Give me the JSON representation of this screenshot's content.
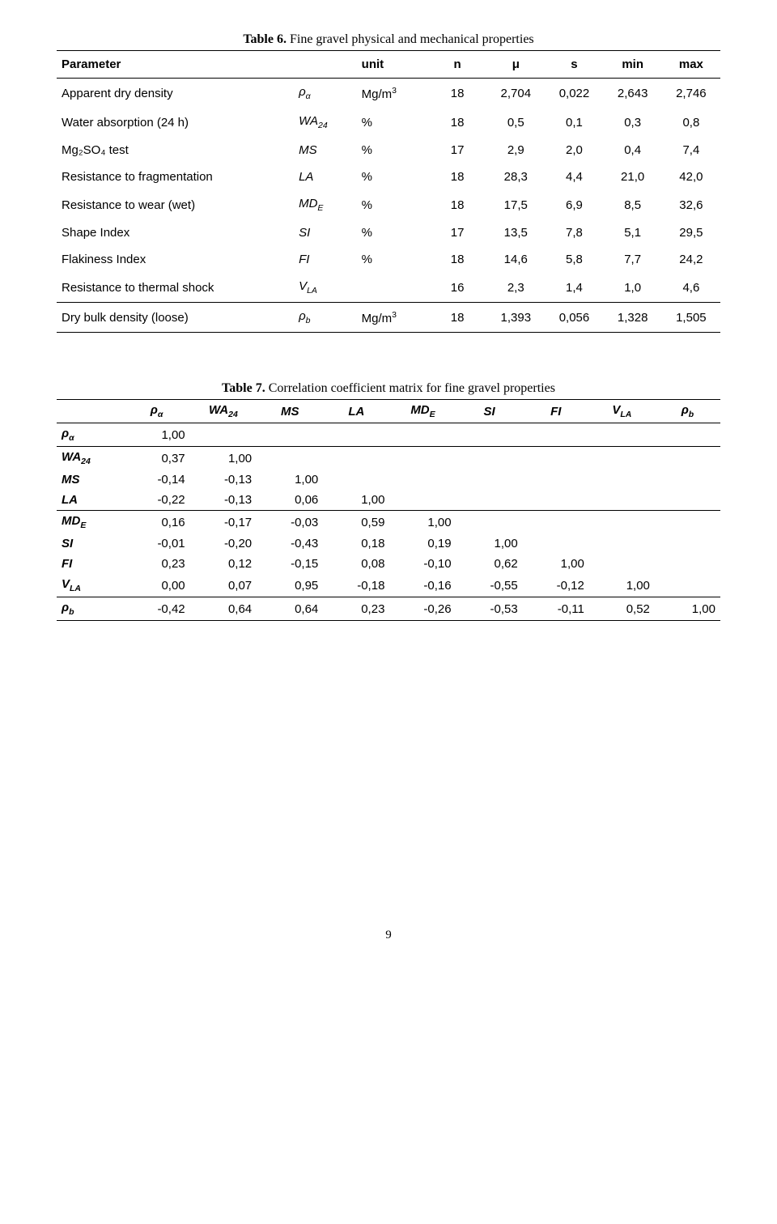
{
  "table6": {
    "title_bold": "Table 6.",
    "title_rest": " Fine gravel physical and mechanical properties",
    "headers": [
      "Parameter",
      "",
      "unit",
      "n",
      "μ",
      "s",
      "min",
      "max"
    ],
    "rows": [
      {
        "param": "Apparent dry density",
        "sym": "ρ",
        "sub": "α",
        "unit": "Mg/m",
        "unitSup": "3",
        "n": "18",
        "mu": "2,704",
        "s": "0,022",
        "min": "2,643",
        "max": "2,746"
      },
      {
        "param": "Water absorption (24 h)",
        "sym": "WA",
        "sub": "24",
        "unit": "%",
        "unitSup": "",
        "n": "18",
        "mu": "0,5",
        "s": "0,1",
        "min": "0,3",
        "max": "0,8"
      },
      {
        "param": "Mg₂SO₄ test",
        "sym": "MS",
        "sub": "",
        "unit": "%",
        "unitSup": "",
        "n": "17",
        "mu": "2,9",
        "s": "2,0",
        "min": "0,4",
        "max": "7,4"
      },
      {
        "param": "Resistance to fragmentation",
        "sym": "LA",
        "sub": "",
        "unit": "%",
        "unitSup": "",
        "n": "18",
        "mu": "28,3",
        "s": "4,4",
        "min": "21,0",
        "max": "42,0"
      },
      {
        "param": "Resistance to wear (wet)",
        "sym": "MD",
        "sub": "E",
        "unit": "%",
        "unitSup": "",
        "n": "18",
        "mu": "17,5",
        "s": "6,9",
        "min": "8,5",
        "max": "32,6"
      },
      {
        "param": "Shape Index",
        "sym": "SI",
        "sub": "",
        "unit": "%",
        "unitSup": "",
        "n": "17",
        "mu": "13,5",
        "s": "7,8",
        "min": "5,1",
        "max": "29,5"
      },
      {
        "param": "Flakiness Index",
        "sym": "FI",
        "sub": "",
        "unit": "%",
        "unitSup": "",
        "n": "18",
        "mu": "14,6",
        "s": "5,8",
        "min": "7,7",
        "max": "24,2"
      },
      {
        "param": "Resistance to thermal shock",
        "sym": "V",
        "sub": "LA",
        "unit": "",
        "unitSup": "",
        "n": "16",
        "mu": "2,3",
        "s": "1,4",
        "min": "1,0",
        "max": "4,6"
      },
      {
        "param": "Dry bulk density (loose)",
        "sym": "ρ",
        "sub": "b",
        "unit": "Mg/m",
        "unitSup": "3",
        "n": "18",
        "mu": "1,393",
        "s": "0,056",
        "min": "1,328",
        "max": "1,505"
      }
    ]
  },
  "table7": {
    "title_bold": "Table 7.",
    "title_rest": " Correlation coefficient matrix for fine gravel properties",
    "cols": [
      {
        "sym": "ρ",
        "sub": "α"
      },
      {
        "sym": "WA",
        "sub": "24"
      },
      {
        "sym": "MS",
        "sub": ""
      },
      {
        "sym": "LA",
        "sub": ""
      },
      {
        "sym": "MD",
        "sub": "E"
      },
      {
        "sym": "SI",
        "sub": ""
      },
      {
        "sym": "FI",
        "sub": ""
      },
      {
        "sym": "V",
        "sub": "LA"
      },
      {
        "sym": "ρ",
        "sub": "b"
      }
    ],
    "rows": [
      {
        "sym": "ρ",
        "sub": "α",
        "vals": [
          "1,00",
          "",
          "",
          "",
          "",
          "",
          "",
          "",
          ""
        ],
        "lineAbove": false
      },
      {
        "sym": "WA",
        "sub": "24",
        "vals": [
          "0,37",
          "1,00",
          "",
          "",
          "",
          "",
          "",
          "",
          ""
        ],
        "lineAbove": true
      },
      {
        "sym": "MS",
        "sub": "",
        "vals": [
          "-0,14",
          "-0,13",
          "1,00",
          "",
          "",
          "",
          "",
          "",
          ""
        ],
        "lineAbove": false
      },
      {
        "sym": "LA",
        "sub": "",
        "vals": [
          "-0,22",
          "-0,13",
          "0,06",
          "1,00",
          "",
          "",
          "",
          "",
          ""
        ],
        "lineAbove": false
      },
      {
        "sym": "MD",
        "sub": "E",
        "vals": [
          "0,16",
          "-0,17",
          "-0,03",
          "0,59",
          "1,00",
          "",
          "",
          "",
          ""
        ],
        "lineAbove": true
      },
      {
        "sym": "SI",
        "sub": "",
        "vals": [
          "-0,01",
          "-0,20",
          "-0,43",
          "0,18",
          "0,19",
          "1,00",
          "",
          "",
          ""
        ],
        "lineAbove": false
      },
      {
        "sym": "FI",
        "sub": "",
        "vals": [
          "0,23",
          "0,12",
          "-0,15",
          "0,08",
          "-0,10",
          "0,62",
          "1,00",
          "",
          ""
        ],
        "lineAbove": false
      },
      {
        "sym": "V",
        "sub": "LA",
        "vals": [
          "0,00",
          "0,07",
          "0,95",
          "-0,18",
          "-0,16",
          "-0,55",
          "-0,12",
          "1,00",
          ""
        ],
        "lineAbove": false
      },
      {
        "sym": "ρ",
        "sub": "b",
        "vals": [
          "-0,42",
          "0,64",
          "0,64",
          "0,23",
          "-0,26",
          "-0,53",
          "-0,11",
          "0,52",
          "1,00"
        ],
        "lineAbove": true
      }
    ]
  },
  "page_number": "9"
}
